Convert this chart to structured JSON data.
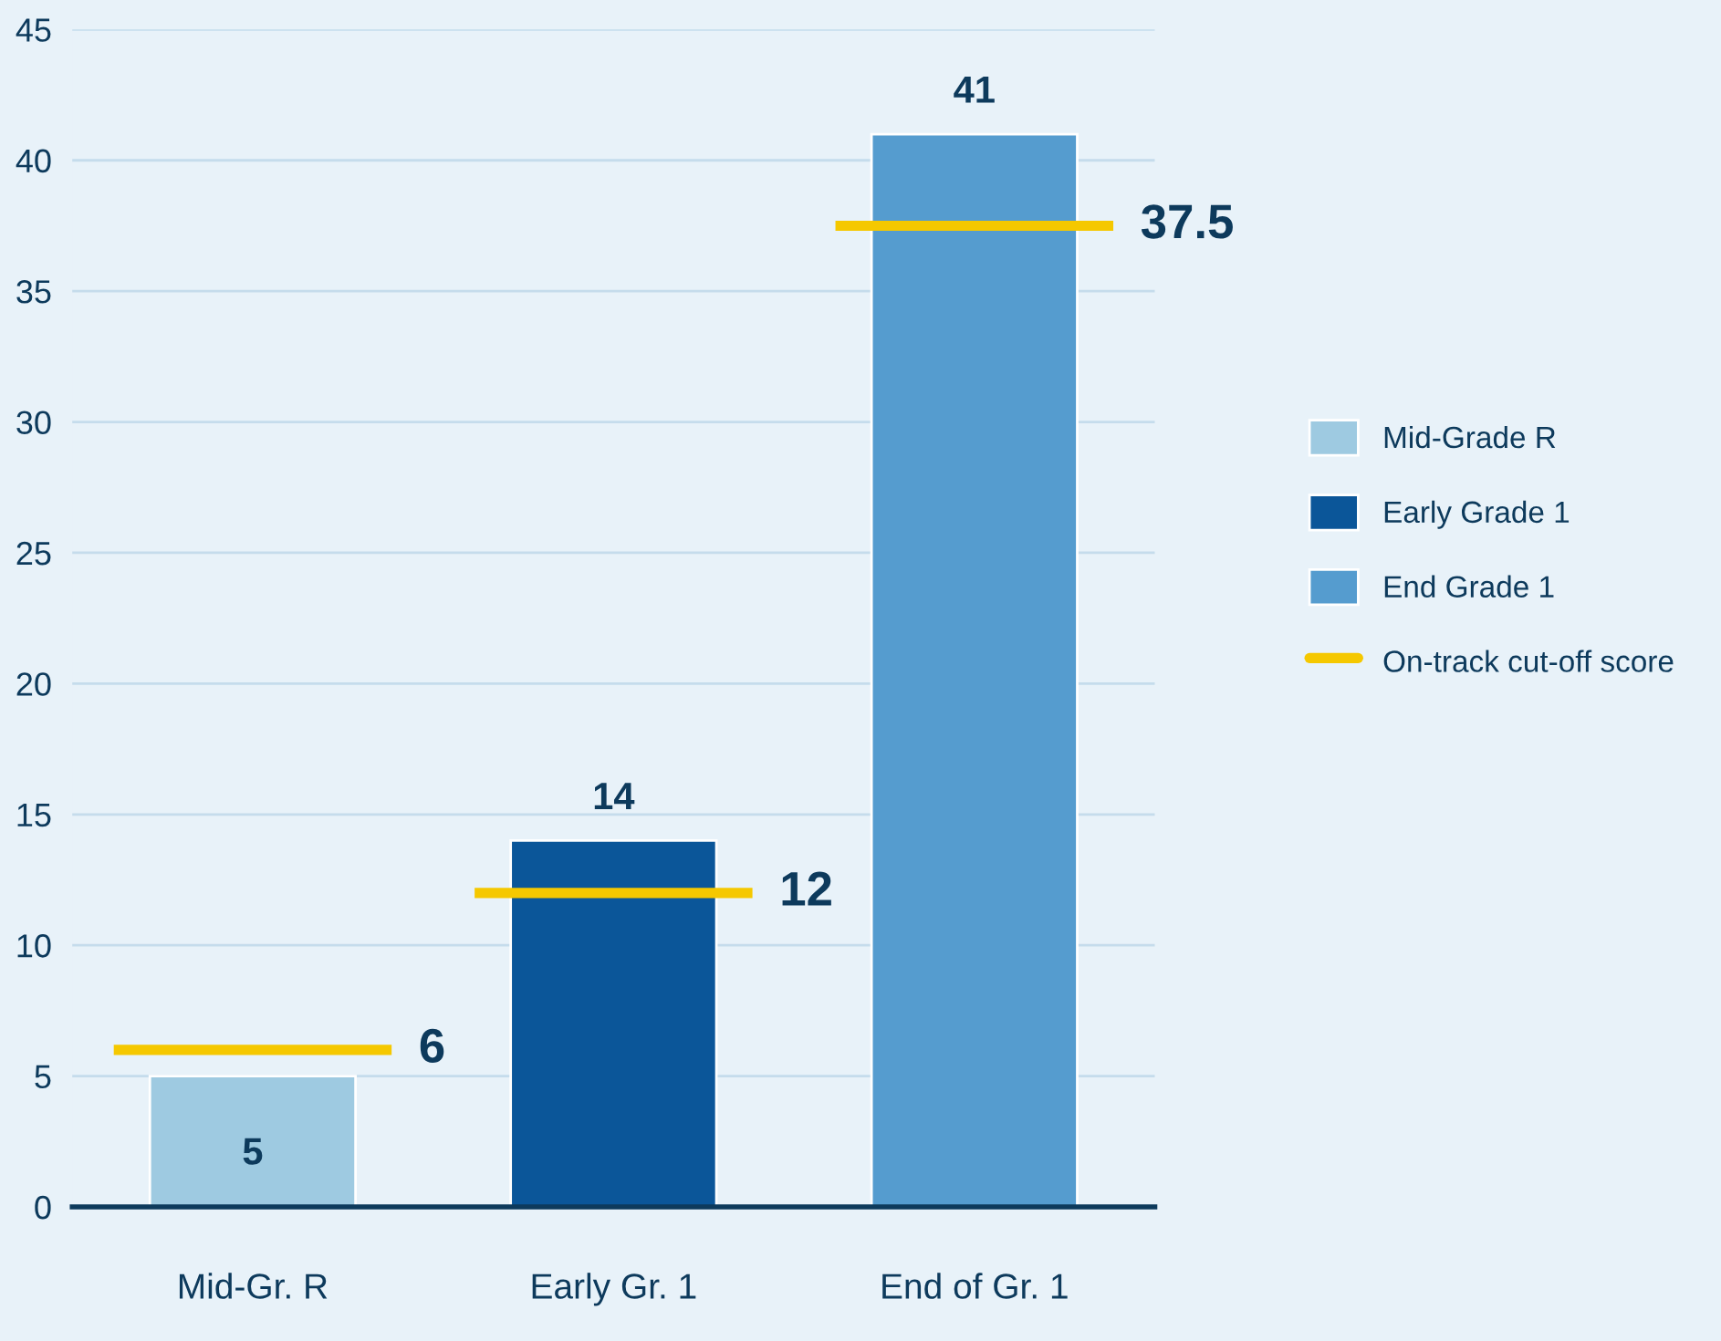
{
  "chart_data": {
    "type": "bar",
    "stacked": true,
    "categories": [
      "Mid-Gr. R",
      "Early Gr. 1",
      "End of Gr. 1"
    ],
    "series": [
      {
        "name": "Mid-Grade R",
        "color": "#9ecae1",
        "values": [
          5,
          null,
          null
        ]
      },
      {
        "name": "Early Grade 1",
        "color": "#0b5699",
        "values": [
          null,
          14,
          null
        ]
      },
      {
        "name": "End Grade 1",
        "color": "#559ccf",
        "values": [
          null,
          null,
          41
        ]
      }
    ],
    "ref_lines": [
      {
        "axis": "y",
        "value": 6,
        "label": "6",
        "color": "#f5c800",
        "line_style": "solid"
      },
      {
        "axis": "y",
        "value": 12,
        "label": "12",
        "color": "#f5c800",
        "line_style": "solid"
      },
      {
        "axis": "y",
        "value": 37.5,
        "label": "37.5",
        "color": "#f5c800",
        "line_style": "solid"
      }
    ],
    "annotations": [
      "On-track cut-off score"
    ],
    "ylim": [
      0,
      45
    ],
    "yticks": [
      0,
      5,
      10,
      15,
      20,
      25,
      30,
      35,
      40,
      45
    ],
    "grid": "y",
    "legend": "right",
    "data_labels": true
  }
}
